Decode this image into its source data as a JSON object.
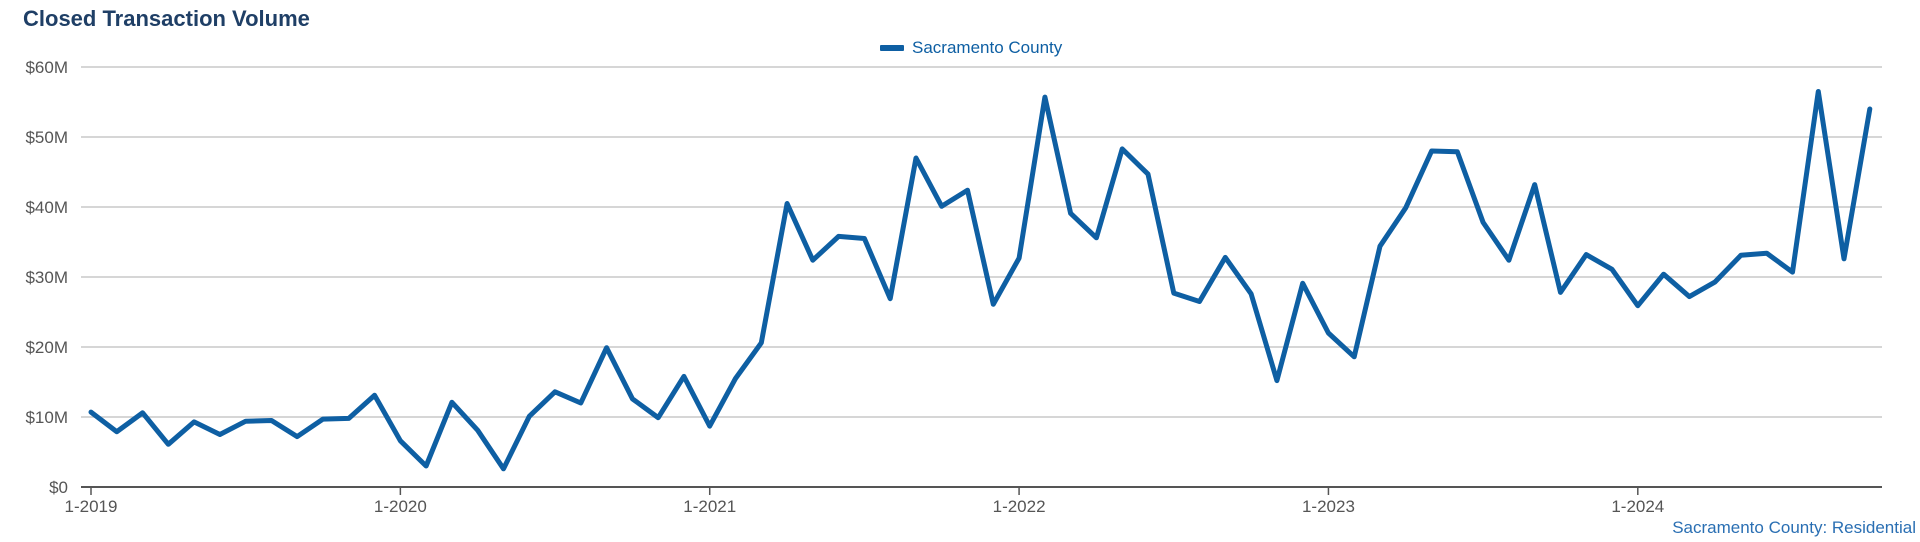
{
  "chart_data": {
    "type": "line",
    "title": "Closed Transaction Volume",
    "xlabel": "",
    "ylabel": "",
    "ylim": [
      0,
      60
    ],
    "y_unit": "M",
    "y_ticks": [
      0,
      10,
      20,
      30,
      40,
      50,
      60
    ],
    "y_tick_labels": [
      "$0",
      "$10M",
      "$20M",
      "$30M",
      "$40M",
      "$50M",
      "$60M"
    ],
    "x_ticks": [
      "1-2019",
      "1-2020",
      "1-2021",
      "1-2022",
      "1-2023",
      "1-2024"
    ],
    "x_start": "2019-01",
    "grid": true,
    "legend_position": "top-center",
    "colors": {
      "series": "#0e5fa3",
      "grid": "#c8c8c8",
      "axis": "#555555"
    },
    "series": [
      {
        "name": "Sacramento County",
        "values": [
          10.7,
          7.9,
          10.6,
          6.1,
          9.3,
          7.5,
          9.4,
          9.5,
          7.2,
          9.7,
          9.8,
          13.1,
          6.6,
          3.0,
          12.1,
          8.1,
          2.6,
          10.1,
          13.6,
          12.0,
          19.9,
          12.6,
          9.9,
          15.8,
          8.7,
          15.5,
          20.6,
          40.5,
          32.4,
          35.8,
          35.5,
          26.9,
          47.0,
          40.1,
          42.4,
          26.1,
          32.7,
          55.7,
          39.1,
          35.6,
          48.3,
          44.7,
          27.7,
          26.5,
          32.8,
          27.6,
          15.2,
          29.1,
          22.0,
          18.6,
          34.4,
          39.9,
          48.0,
          47.9,
          37.8,
          32.4,
          43.2,
          27.8,
          33.2,
          31.1,
          25.9,
          30.4,
          27.2,
          29.3,
          33.1,
          33.4,
          30.7,
          56.5,
          32.6,
          54.0
        ]
      }
    ]
  },
  "source": "Sacramento County: Residential"
}
